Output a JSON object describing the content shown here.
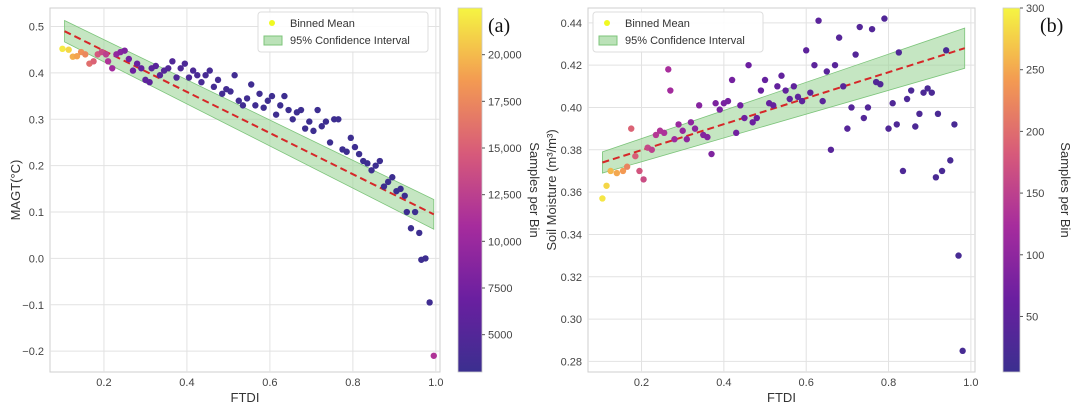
{
  "chart_data": [
    {
      "type": "scatter",
      "panel_label": "(a)",
      "xlabel": "FTDI",
      "ylabel": "MAGT(°C)",
      "xlim": [
        0.07,
        1.01
      ],
      "ylim": [
        -0.245,
        0.54
      ],
      "xticks": [
        "0.2",
        "0.4",
        "0.6",
        "0.8",
        "1.0"
      ],
      "xtick_values": [
        0.2,
        0.4,
        0.6,
        0.8,
        1.0
      ],
      "yticks": [
        "−0.2",
        "−0.1",
        "0.0",
        "0.1",
        "0.2",
        "0.3",
        "0.4",
        "0.5"
      ],
      "ytick_values": [
        -0.2,
        -0.1,
        0.0,
        0.1,
        0.2,
        0.3,
        0.4,
        0.5
      ],
      "legend": {
        "mean_label": "Binned Mean",
        "ci_label": "95% Confidence Interval",
        "position": "top-right"
      },
      "colorbar": {
        "label": "Samples per Bin",
        "range": [
          3000,
          22500
        ],
        "ticks": [
          "20,000",
          "17,500",
          "15,000",
          "12,500",
          "10,000",
          "7500",
          "5000"
        ],
        "tick_values": [
          20000,
          17500,
          15000,
          12500,
          10000,
          7500,
          5000
        ]
      },
      "fit": {
        "x_start": 0.105,
        "y_start": 0.49,
        "x_end": 0.995,
        "y_end": 0.095,
        "ci_start": 0.023,
        "ci_end": 0.032
      },
      "points": [
        [
          0.1,
          0.452,
          22000
        ],
        [
          0.115,
          0.45,
          21200
        ],
        [
          0.125,
          0.435,
          19500
        ],
        [
          0.135,
          0.436,
          19000
        ],
        [
          0.145,
          0.445,
          18000
        ],
        [
          0.155,
          0.44,
          17500
        ],
        [
          0.165,
          0.42,
          16000
        ],
        [
          0.175,
          0.425,
          15200
        ],
        [
          0.185,
          0.44,
          14500
        ],
        [
          0.195,
          0.445,
          13500
        ],
        [
          0.205,
          0.44,
          12500
        ],
        [
          0.21,
          0.425,
          11500
        ],
        [
          0.22,
          0.41,
          10500
        ],
        [
          0.23,
          0.44,
          9500
        ],
        [
          0.24,
          0.445,
          8800
        ],
        [
          0.25,
          0.448,
          8200
        ],
        [
          0.26,
          0.43,
          7500
        ],
        [
          0.27,
          0.405,
          7000
        ],
        [
          0.28,
          0.42,
          6600
        ],
        [
          0.29,
          0.41,
          6200
        ],
        [
          0.3,
          0.385,
          6000
        ],
        [
          0.31,
          0.38,
          5800
        ],
        [
          0.315,
          0.41,
          5600
        ],
        [
          0.325,
          0.415,
          5400
        ],
        [
          0.335,
          0.395,
          5200
        ],
        [
          0.345,
          0.405,
          5000
        ],
        [
          0.355,
          0.41,
          4900
        ],
        [
          0.365,
          0.425,
          4800
        ],
        [
          0.375,
          0.39,
          4700
        ],
        [
          0.385,
          0.41,
          4600
        ],
        [
          0.395,
          0.42,
          4500
        ],
        [
          0.405,
          0.39,
          4400
        ],
        [
          0.415,
          0.405,
          4300
        ],
        [
          0.425,
          0.395,
          4200
        ],
        [
          0.435,
          0.38,
          4100
        ],
        [
          0.445,
          0.395,
          4000
        ],
        [
          0.455,
          0.405,
          3900
        ],
        [
          0.465,
          0.37,
          3800
        ],
        [
          0.475,
          0.385,
          3800
        ],
        [
          0.485,
          0.355,
          3700
        ],
        [
          0.495,
          0.365,
          3700
        ],
        [
          0.505,
          0.36,
          3600
        ],
        [
          0.515,
          0.395,
          3600
        ],
        [
          0.525,
          0.34,
          3500
        ],
        [
          0.535,
          0.33,
          3500
        ],
        [
          0.545,
          0.345,
          3500
        ],
        [
          0.555,
          0.375,
          3400
        ],
        [
          0.565,
          0.33,
          3400
        ],
        [
          0.575,
          0.355,
          3400
        ],
        [
          0.585,
          0.325,
          3300
        ],
        [
          0.595,
          0.34,
          3300
        ],
        [
          0.605,
          0.35,
          3300
        ],
        [
          0.615,
          0.31,
          3300
        ],
        [
          0.625,
          0.33,
          3200
        ],
        [
          0.635,
          0.35,
          3200
        ],
        [
          0.645,
          0.32,
          3200
        ],
        [
          0.655,
          0.3,
          3200
        ],
        [
          0.665,
          0.315,
          3200
        ],
        [
          0.675,
          0.32,
          3200
        ],
        [
          0.685,
          0.28,
          3200
        ],
        [
          0.695,
          0.295,
          3200
        ],
        [
          0.705,
          0.275,
          3200
        ],
        [
          0.715,
          0.32,
          3200
        ],
        [
          0.725,
          0.285,
          3200
        ],
        [
          0.735,
          0.295,
          3200
        ],
        [
          0.745,
          0.25,
          3200
        ],
        [
          0.755,
          0.3,
          3200
        ],
        [
          0.765,
          0.3,
          3200
        ],
        [
          0.775,
          0.235,
          3200
        ],
        [
          0.785,
          0.23,
          3200
        ],
        [
          0.795,
          0.26,
          3200
        ],
        [
          0.805,
          0.24,
          3200
        ],
        [
          0.815,
          0.225,
          3200
        ],
        [
          0.825,
          0.21,
          3200
        ],
        [
          0.835,
          0.205,
          3200
        ],
        [
          0.845,
          0.19,
          3200
        ],
        [
          0.855,
          0.2,
          3200
        ],
        [
          0.865,
          0.21,
          3200
        ],
        [
          0.875,
          0.155,
          3200
        ],
        [
          0.885,
          0.165,
          3200
        ],
        [
          0.895,
          0.175,
          3200
        ],
        [
          0.905,
          0.145,
          3200
        ],
        [
          0.915,
          0.15,
          3200
        ],
        [
          0.925,
          0.135,
          3200
        ],
        [
          0.93,
          0.1,
          3200
        ],
        [
          0.94,
          0.065,
          3200
        ],
        [
          0.95,
          0.1,
          3200
        ],
        [
          0.96,
          0.055,
          3200
        ],
        [
          0.965,
          -0.003,
          3200
        ],
        [
          0.975,
          0.0,
          3200
        ],
        [
          0.985,
          -0.095,
          3400
        ],
        [
          0.995,
          -0.21,
          11500
        ]
      ]
    },
    {
      "type": "scatter",
      "panel_label": "(b)",
      "xlabel": "FTDI",
      "ylabel": "Soil Moisture (m³/m³)",
      "xlim": [
        0.07,
        1.01
      ],
      "ylim": [
        0.275,
        0.447
      ],
      "xticks": [
        "0.2",
        "0.4",
        "0.6",
        "0.8",
        "1.0"
      ],
      "xtick_values": [
        0.2,
        0.4,
        0.6,
        0.8,
        1.0
      ],
      "yticks": [
        "0.28",
        "0.30",
        "0.32",
        "0.34",
        "0.36",
        "0.38",
        "0.40",
        "0.42",
        "0.44"
      ],
      "ytick_values": [
        0.28,
        0.3,
        0.32,
        0.34,
        0.36,
        0.38,
        0.4,
        0.42,
        0.44
      ],
      "legend": {
        "mean_label": "Binned Mean",
        "ci_label": "95% Confidence Interval",
        "position": "top-left"
      },
      "colorbar": {
        "label": "Samples per Bin",
        "range": [
          5,
          300
        ],
        "ticks": [
          "300",
          "250",
          "200",
          "150",
          "100",
          "50"
        ],
        "tick_values": [
          300,
          250,
          200,
          150,
          100,
          50
        ]
      },
      "fit": {
        "x_start": 0.105,
        "y_start": 0.374,
        "x_end": 0.985,
        "y_end": 0.428,
        "ci_start": 0.005,
        "ci_end": 0.0095
      },
      "points": [
        [
          0.105,
          0.357,
          290
        ],
        [
          0.115,
          0.363,
          280
        ],
        [
          0.125,
          0.37,
          260
        ],
        [
          0.14,
          0.369,
          250
        ],
        [
          0.155,
          0.37,
          240
        ],
        [
          0.165,
          0.372,
          220
        ],
        [
          0.175,
          0.39,
          190
        ],
        [
          0.185,
          0.377,
          185
        ],
        [
          0.195,
          0.37,
          175
        ],
        [
          0.205,
          0.366,
          165
        ],
        [
          0.215,
          0.381,
          160
        ],
        [
          0.225,
          0.38,
          150
        ],
        [
          0.235,
          0.387,
          140
        ],
        [
          0.245,
          0.389,
          135
        ],
        [
          0.255,
          0.388,
          130
        ],
        [
          0.265,
          0.418,
          125
        ],
        [
          0.27,
          0.408,
          120
        ],
        [
          0.28,
          0.385,
          115
        ],
        [
          0.29,
          0.392,
          110
        ],
        [
          0.3,
          0.389,
          105
        ],
        [
          0.31,
          0.385,
          100
        ],
        [
          0.32,
          0.393,
          98
        ],
        [
          0.33,
          0.39,
          95
        ],
        [
          0.34,
          0.401,
          92
        ],
        [
          0.35,
          0.387,
          90
        ],
        [
          0.36,
          0.386,
          88
        ],
        [
          0.37,
          0.378,
          85
        ],
        [
          0.38,
          0.402,
          82
        ],
        [
          0.39,
          0.399,
          80
        ],
        [
          0.4,
          0.402,
          78
        ],
        [
          0.41,
          0.403,
          76
        ],
        [
          0.42,
          0.413,
          74
        ],
        [
          0.43,
          0.388,
          72
        ],
        [
          0.44,
          0.401,
          70
        ],
        [
          0.45,
          0.395,
          68
        ],
        [
          0.46,
          0.42,
          66
        ],
        [
          0.47,
          0.393,
          64
        ],
        [
          0.48,
          0.395,
          62
        ],
        [
          0.49,
          0.408,
          60
        ],
        [
          0.5,
          0.413,
          58
        ],
        [
          0.51,
          0.402,
          57
        ],
        [
          0.52,
          0.401,
          56
        ],
        [
          0.53,
          0.41,
          55
        ],
        [
          0.54,
          0.415,
          54
        ],
        [
          0.55,
          0.408,
          53
        ],
        [
          0.56,
          0.404,
          52
        ],
        [
          0.57,
          0.41,
          51
        ],
        [
          0.58,
          0.405,
          50
        ],
        [
          0.59,
          0.403,
          49
        ],
        [
          0.6,
          0.427,
          48
        ],
        [
          0.61,
          0.407,
          47
        ],
        [
          0.62,
          0.42,
          46
        ],
        [
          0.63,
          0.441,
          45
        ],
        [
          0.64,
          0.403,
          44
        ],
        [
          0.65,
          0.417,
          43
        ],
        [
          0.66,
          0.38,
          42
        ],
        [
          0.67,
          0.42,
          41
        ],
        [
          0.68,
          0.433,
          40
        ],
        [
          0.69,
          0.41,
          40
        ],
        [
          0.7,
          0.39,
          39
        ],
        [
          0.71,
          0.4,
          38
        ],
        [
          0.72,
          0.425,
          37
        ],
        [
          0.73,
          0.438,
          37
        ],
        [
          0.74,
          0.395,
          36
        ],
        [
          0.75,
          0.4,
          35
        ],
        [
          0.76,
          0.437,
          35
        ],
        [
          0.77,
          0.412,
          34
        ],
        [
          0.78,
          0.411,
          33
        ],
        [
          0.79,
          0.442,
          33
        ],
        [
          0.8,
          0.39,
          32
        ],
        [
          0.81,
          0.402,
          31
        ],
        [
          0.82,
          0.392,
          30
        ],
        [
          0.825,
          0.426,
          30
        ],
        [
          0.835,
          0.37,
          29
        ],
        [
          0.845,
          0.404,
          28
        ],
        [
          0.855,
          0.408,
          28
        ],
        [
          0.865,
          0.391,
          27
        ],
        [
          0.875,
          0.397,
          27
        ],
        [
          0.885,
          0.407,
          26
        ],
        [
          0.895,
          0.409,
          25
        ],
        [
          0.905,
          0.407,
          25
        ],
        [
          0.915,
          0.367,
          24
        ],
        [
          0.92,
          0.397,
          24
        ],
        [
          0.93,
          0.37,
          23
        ],
        [
          0.94,
          0.427,
          23
        ],
        [
          0.95,
          0.375,
          22
        ],
        [
          0.96,
          0.392,
          22
        ],
        [
          0.97,
          0.33,
          21
        ],
        [
          0.98,
          0.285,
          20
        ]
      ]
    }
  ]
}
